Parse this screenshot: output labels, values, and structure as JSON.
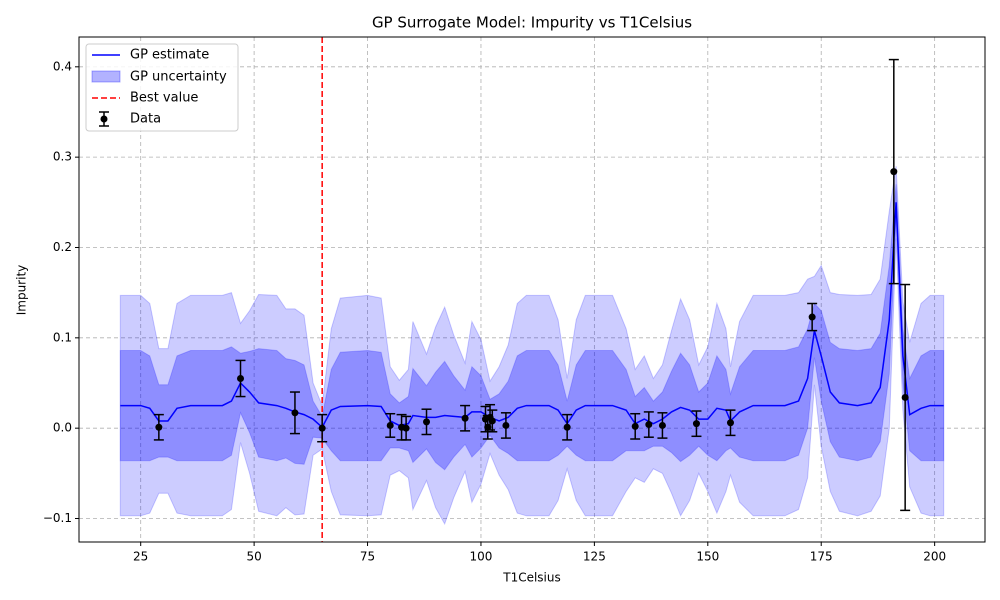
{
  "chart_data": {
    "type": "line",
    "title": "GP Surrogate Model: Impurity vs T1Celsius",
    "x_label": "T1Celsius",
    "y_label": "Impurity",
    "xlim": [
      11.4,
      211.1
    ],
    "ylim": [
      -0.126,
      0.433
    ],
    "xticks": [
      25,
      50,
      75,
      100,
      125,
      150,
      175,
      200
    ],
    "yticks": [
      {
        "value": -0.1,
        "label": "−0.1"
      },
      {
        "value": 0,
        "label": "0.0"
      },
      0.1,
      0.2,
      0.3,
      0.4
    ],
    "grid": true,
    "legend": "upper left",
    "x": [
      20.5,
      25,
      27,
      29,
      31,
      33,
      36,
      43,
      45,
      47,
      49,
      51,
      55,
      57,
      59,
      61,
      63,
      65,
      67,
      69,
      75,
      78,
      80,
      82,
      84,
      85,
      88,
      90,
      92,
      94,
      96.5,
      98,
      100,
      102,
      104,
      106,
      108,
      110,
      115,
      117,
      119,
      121,
      123,
      129,
      132,
      134,
      136,
      138,
      140,
      142,
      144,
      146,
      148,
      150,
      152,
      154,
      155,
      157,
      160,
      167,
      170,
      172,
      173.5,
      175,
      177,
      179,
      183,
      186,
      188,
      190,
      191.5,
      193,
      194.5,
      197,
      199,
      202
    ],
    "series": [
      {
        "name": "GP estimate",
        "color": "#0000ff",
        "values": [
          0.025,
          0.025,
          0.022,
          0.008,
          0.008,
          0.022,
          0.025,
          0.025,
          0.03,
          0.05,
          0.04,
          0.028,
          0.025,
          0.022,
          0.018,
          0.015,
          0.01,
          0.001,
          0.02,
          0.024,
          0.025,
          0.024,
          0.008,
          0.003,
          0.005,
          0.014,
          0.012,
          0.012,
          0.014,
          0.013,
          0.012,
          0.018,
          0.018,
          0.012,
          0.008,
          0.012,
          0.022,
          0.025,
          0.025,
          0.02,
          0.005,
          0.02,
          0.025,
          0.025,
          0.02,
          0.005,
          0.01,
          0.005,
          0.01,
          0.018,
          0.023,
          0.02,
          0.01,
          0.01,
          0.022,
          0.02,
          0.008,
          0.018,
          0.025,
          0.025,
          0.03,
          0.055,
          0.108,
          0.08,
          0.04,
          0.028,
          0.025,
          0.028,
          0.045,
          0.12,
          0.25,
          0.08,
          0.015,
          0.022,
          0.025,
          0.025
        ]
      }
    ],
    "bands": [
      {
        "name": "GP uncertainty",
        "color": "#0000ff",
        "errors": [
          0.122,
          0.122,
          0.116,
          0.08,
          0.08,
          0.116,
          0.122,
          0.122,
          0.12,
          0.066,
          0.09,
          0.12,
          0.122,
          0.11,
          0.114,
          0.11,
          0.04,
          0.024,
          0.09,
          0.12,
          0.122,
          0.12,
          0.06,
          0.05,
          0.06,
          0.104,
          0.07,
          0.1,
          0.12,
          0.09,
          0.06,
          0.1,
          0.08,
          0.04,
          0.06,
          0.08,
          0.116,
          0.122,
          0.122,
          0.1,
          0.05,
          0.1,
          0.122,
          0.122,
          0.09,
          0.06,
          0.07,
          0.05,
          0.06,
          0.09,
          0.12,
          0.1,
          0.06,
          0.08,
          0.116,
          0.09,
          0.06,
          0.1,
          0.122,
          0.122,
          0.12,
          0.11,
          0.06,
          0.1,
          0.11,
          0.12,
          0.122,
          0.12,
          0.12,
          0.12,
          0.04,
          0.06,
          0.08,
          0.116,
          0.122,
          0.122
        ]
      },
      {
        "color": "#0000ff",
        "errors": [
          0.061,
          0.061,
          0.058,
          0.04,
          0.04,
          0.058,
          0.061,
          0.061,
          0.06,
          0.033,
          0.045,
          0.06,
          0.061,
          0.055,
          0.057,
          0.055,
          0.02,
          0.012,
          0.045,
          0.06,
          0.061,
          0.06,
          0.03,
          0.025,
          0.03,
          0.052,
          0.035,
          0.05,
          0.06,
          0.045,
          0.03,
          0.05,
          0.04,
          0.02,
          0.03,
          0.04,
          0.058,
          0.061,
          0.061,
          0.05,
          0.025,
          0.05,
          0.061,
          0.061,
          0.045,
          0.03,
          0.035,
          0.025,
          0.03,
          0.045,
          0.06,
          0.05,
          0.03,
          0.04,
          0.058,
          0.045,
          0.03,
          0.05,
          0.061,
          0.061,
          0.06,
          0.055,
          0.03,
          0.05,
          0.055,
          0.06,
          0.061,
          0.06,
          0.06,
          0.06,
          0.02,
          0.03,
          0.04,
          0.058,
          0.061,
          0.061
        ]
      }
    ],
    "best_value": {
      "name": "Best value",
      "x": 65,
      "color": "#ff0000"
    },
    "points": {
      "name": "Data",
      "color": "#000000",
      "x": [
        29,
        47,
        59,
        65,
        80,
        82.5,
        83.5,
        88,
        96.5,
        101,
        101.5,
        102,
        102.5,
        105.5,
        119,
        134,
        137,
        140,
        147.5,
        155,
        173,
        191,
        193.5
      ],
      "values": [
        0.001,
        0.055,
        0.017,
        0.0,
        0.003,
        0.001,
        0.0,
        0.007,
        0.011,
        0.01,
        0.001,
        0.012,
        0.008,
        0.003,
        0.001,
        0.002,
        0.004,
        0.003,
        0.005,
        0.006,
        0.123,
        0.284,
        0.034
      ],
      "errors": [
        0.014,
        0.02,
        0.023,
        0.015,
        0.013,
        0.014,
        0.013,
        0.014,
        0.014,
        0.014,
        0.013,
        0.014,
        0.012,
        0.014,
        0.014,
        0.014,
        0.014,
        0.014,
        0.014,
        0.014,
        0.015,
        0.124,
        0.125
      ]
    }
  }
}
